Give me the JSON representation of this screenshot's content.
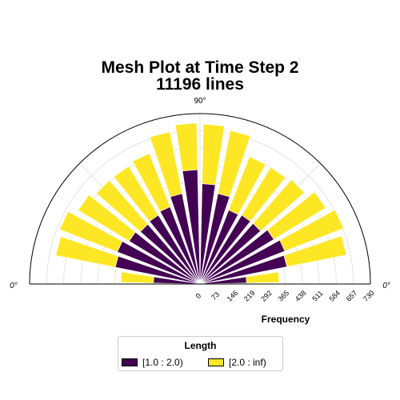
{
  "title": [
    "Mesh Plot at Time Step 2",
    "11196 lines"
  ],
  "angle_labels": {
    "top": "90°",
    "left": "0°",
    "right": "0°"
  },
  "legend": {
    "title": "Length",
    "items": [
      {
        "label": "[1.0 : 2.0)",
        "color": "#440154"
      },
      {
        "label": "[2.0 : inf)",
        "color": "#fde725"
      }
    ]
  },
  "chart_data": {
    "type": "bar",
    "polar": true,
    "angular_range_deg": [
      0,
      180
    ],
    "bin_width_deg": 10,
    "stacked": true,
    "categories": [
      "0-10",
      "10-20",
      "20-30",
      "30-40",
      "40-50",
      "50-60",
      "60-70",
      "70-80",
      "80-90",
      "90-100",
      "100-110",
      "110-120",
      "120-130",
      "130-140",
      "140-150",
      "150-160",
      "160-170",
      "170-180"
    ],
    "series": [
      {
        "name": "[1.0 : 2.0)",
        "color": "#440154",
        "values": [
          200,
          380,
          390,
          370,
          345,
          345,
          340,
          395,
          430,
          490,
          395,
          355,
          345,
          340,
          355,
          380,
          370,
          200
        ]
      },
      {
        "name": "[2.0 : inf)",
        "color": "#fde725",
        "values": [
          140,
          260,
          270,
          260,
          250,
          240,
          245,
          275,
          255,
          200,
          270,
          245,
          245,
          250,
          255,
          265,
          260,
          140
        ]
      }
    ],
    "radial_axis": {
      "label": "Frequency",
      "ticks": [
        0,
        73,
        146,
        219,
        292,
        365,
        438,
        511,
        584,
        657,
        730
      ],
      "range": [
        0,
        730
      ]
    },
    "grid": true
  }
}
